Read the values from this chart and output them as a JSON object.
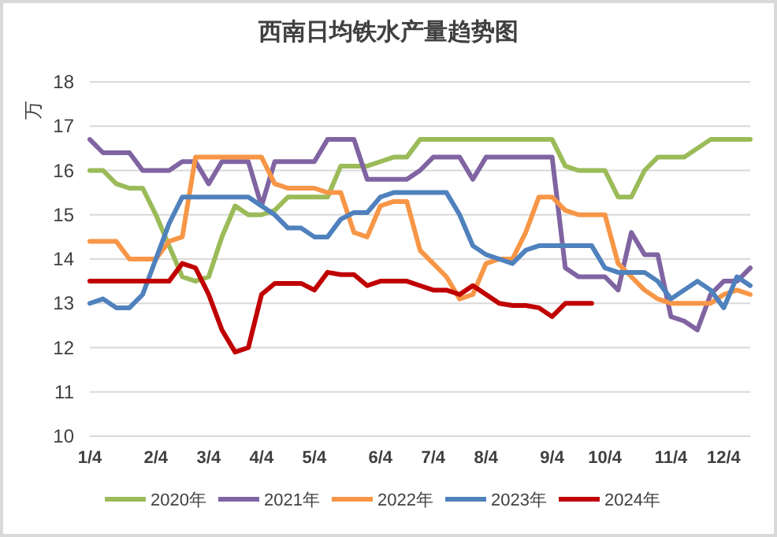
{
  "chart_data": {
    "type": "line",
    "title": "西南日均铁水产量趋势图",
    "ylabel": "万",
    "categories": [
      "1/4",
      null,
      null,
      null,
      null,
      "2/4",
      null,
      null,
      null,
      "3/4",
      null,
      null,
      null,
      "4/4",
      null,
      null,
      null,
      "5/4",
      null,
      null,
      null,
      null,
      "6/4",
      null,
      null,
      null,
      "7/4",
      null,
      null,
      null,
      "8/4",
      null,
      null,
      null,
      null,
      "9/4",
      null,
      null,
      null,
      "10/4",
      null,
      null,
      null,
      null,
      "11/4",
      null,
      null,
      null,
      "12/4",
      null,
      null
    ],
    "ylim": [
      10,
      18
    ],
    "yticks": [
      10,
      11,
      12,
      13,
      14,
      15,
      16,
      17,
      18
    ],
    "grid": "y",
    "legend": "bottom",
    "line_style": "solid",
    "series": [
      {
        "name": "2020年",
        "color": "#9bbb59",
        "values": [
          16.0,
          16.0,
          15.7,
          15.6,
          15.6,
          15.0,
          14.3,
          13.6,
          13.5,
          13.6,
          14.5,
          15.2,
          15.0,
          15.0,
          15.1,
          15.4,
          15.4,
          15.4,
          15.4,
          16.1,
          16.1,
          16.1,
          16.2,
          16.3,
          16.3,
          16.7,
          16.7,
          16.7,
          16.7,
          16.7,
          16.7,
          16.7,
          16.7,
          16.7,
          16.7,
          16.7,
          16.1,
          16.0,
          16.0,
          16.0,
          15.4,
          15.4,
          16.0,
          16.3,
          16.3,
          16.3,
          16.5,
          16.7,
          16.7,
          16.7,
          16.7
        ]
      },
      {
        "name": "2021年",
        "color": "#8064a2",
        "values": [
          16.7,
          16.4,
          16.4,
          16.4,
          16.0,
          16.0,
          16.0,
          16.2,
          16.2,
          15.7,
          16.2,
          16.2,
          16.2,
          15.2,
          16.2,
          16.2,
          16.2,
          16.2,
          16.7,
          16.7,
          16.7,
          15.8,
          15.8,
          15.8,
          15.8,
          16.0,
          16.3,
          16.3,
          16.3,
          15.8,
          16.3,
          16.3,
          16.3,
          16.3,
          16.3,
          16.3,
          13.8,
          13.6,
          13.6,
          13.6,
          13.3,
          14.6,
          14.1,
          14.1,
          12.7,
          12.6,
          12.4,
          13.2,
          13.5,
          13.5,
          13.8
        ]
      },
      {
        "name": "2022年",
        "color": "#f79646",
        "values": [
          14.4,
          14.4,
          14.4,
          14.0,
          14.0,
          14.0,
          14.4,
          14.5,
          16.3,
          16.3,
          16.3,
          16.3,
          16.3,
          16.3,
          15.7,
          15.6,
          15.6,
          15.6,
          15.5,
          15.5,
          14.6,
          14.5,
          15.2,
          15.3,
          15.3,
          14.2,
          13.9,
          13.6,
          13.1,
          13.2,
          13.9,
          14.0,
          14.0,
          14.6,
          15.4,
          15.4,
          15.1,
          15.0,
          15.0,
          15.0,
          13.9,
          13.6,
          13.3,
          13.1,
          13.0,
          13.0,
          13.0,
          13.0,
          13.2,
          13.3,
          13.2
        ]
      },
      {
        "name": "2023年",
        "color": "#4f81bd",
        "values": [
          13.0,
          13.1,
          12.9,
          12.9,
          13.2,
          14.0,
          14.8,
          15.4,
          15.4,
          15.4,
          15.4,
          15.4,
          15.4,
          15.2,
          15.0,
          14.7,
          14.7,
          14.5,
          14.5,
          14.9,
          15.05,
          15.05,
          15.4,
          15.5,
          15.5,
          15.5,
          15.5,
          15.5,
          15.0,
          14.3,
          14.1,
          14.0,
          13.9,
          14.2,
          14.3,
          14.3,
          14.3,
          14.3,
          14.3,
          13.8,
          13.7,
          13.7,
          13.7,
          13.5,
          13.1,
          13.3,
          13.5,
          13.3,
          12.9,
          13.6,
          13.4
        ]
      },
      {
        "name": "2024年",
        "color": "#c00000",
        "values": [
          13.5,
          13.5,
          13.5,
          13.5,
          13.5,
          13.5,
          13.5,
          13.9,
          13.8,
          13.2,
          12.4,
          11.9,
          12.0,
          13.2,
          13.45,
          13.45,
          13.45,
          13.3,
          13.7,
          13.65,
          13.65,
          13.4,
          13.5,
          13.5,
          13.5,
          13.4,
          13.3,
          13.3,
          13.2,
          13.4,
          13.2,
          13.0,
          12.95,
          12.95,
          12.9,
          12.7,
          13.0,
          13.0,
          13.0,
          null,
          null,
          null,
          null,
          null,
          null,
          null,
          null,
          null,
          null,
          null,
          null
        ]
      }
    ]
  }
}
